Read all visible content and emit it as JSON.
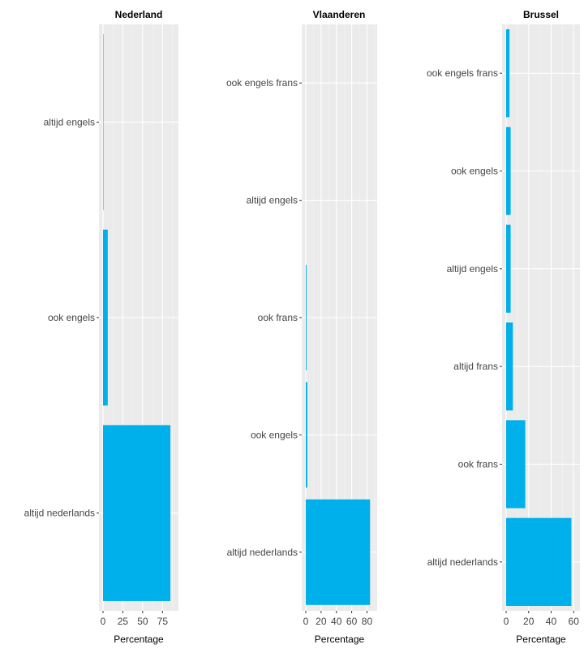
{
  "chart_data": [
    {
      "type": "bar",
      "orientation": "horizontal",
      "title": "Nederland",
      "xlabel": "Percentage",
      "ylabel": "",
      "xlim": [
        0,
        90
      ],
      "xticks": [
        0,
        25,
        50,
        75
      ],
      "xtick_labels": [
        "0",
        "25",
        "50",
        "75"
      ],
      "categories": [
        "altijd nederlands",
        "ook engels",
        "altijd engels"
      ],
      "values": [
        85,
        6,
        0.5
      ],
      "color": "#00b0ea"
    },
    {
      "type": "bar",
      "orientation": "horizontal",
      "title": "Vlaanderen",
      "xlabel": "Percentage",
      "ylabel": "",
      "xlim": [
        0,
        88
      ],
      "xticks": [
        0,
        20,
        40,
        60,
        80
      ],
      "xtick_labels": [
        "0",
        "20",
        "40",
        "60",
        "80"
      ],
      "categories": [
        "altijd nederlands",
        "ook engels",
        "ook frans",
        "altijd engels",
        "ook engels frans"
      ],
      "values": [
        84,
        2,
        1,
        0,
        0
      ],
      "color": "#00b0ea"
    },
    {
      "type": "bar",
      "orientation": "horizontal",
      "title": "Brussel",
      "xlabel": "Percentage",
      "ylabel": "",
      "xlim": [
        0,
        62
      ],
      "xticks": [
        0,
        20,
        40,
        60
      ],
      "xtick_labels": [
        "0",
        "20",
        "40",
        "60"
      ],
      "categories": [
        "altijd nederlands",
        "ook frans",
        "altijd frans",
        "altijd engels",
        "ook engels",
        "ook engels frans"
      ],
      "values": [
        58,
        17,
        6,
        4,
        4,
        3
      ],
      "color": "#00b0ea"
    }
  ]
}
